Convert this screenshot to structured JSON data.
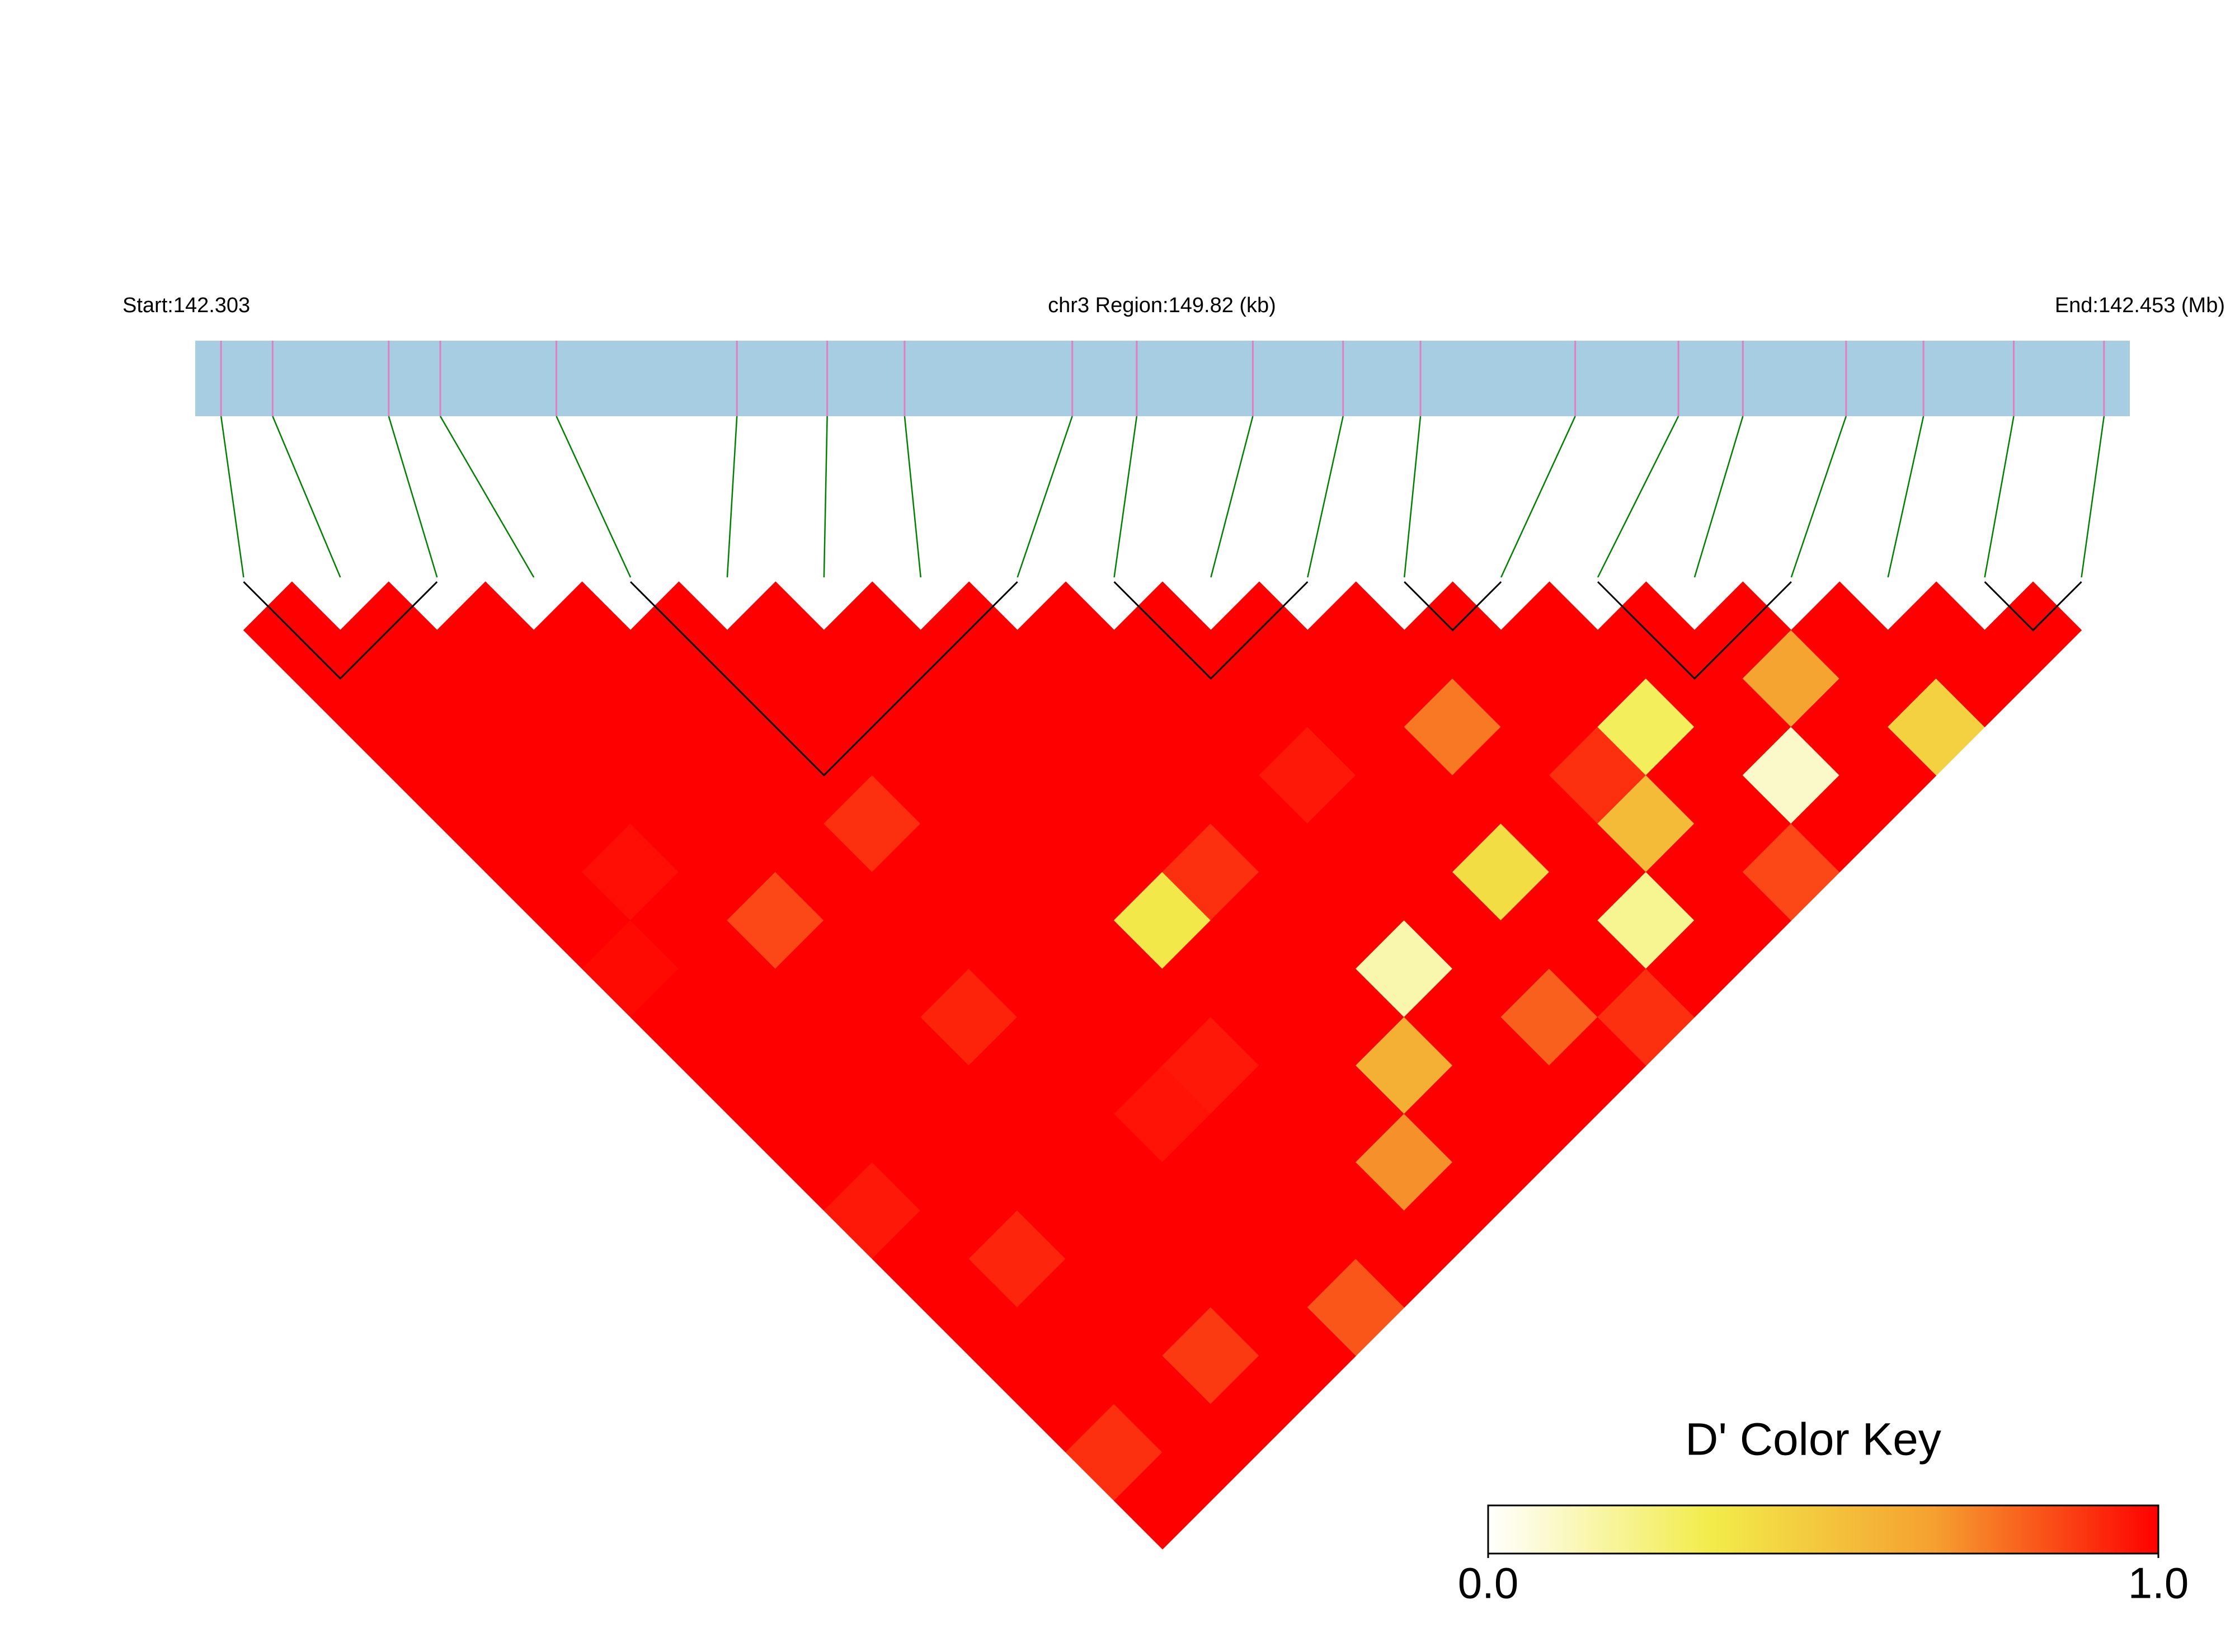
{
  "chart_data": {
    "type": "ld-heatmap",
    "start_label": "Start:142.303",
    "region_label": "chr3 Region:149.82 (kb)",
    "end_label": "End:142.453 (Mb)",
    "xlim": [
      142.303,
      142.453
    ],
    "snp_positions": [
      142.305,
      142.309,
      142.318,
      142.322,
      142.331,
      142.345,
      142.352,
      142.358,
      142.371,
      142.376,
      142.385,
      142.392,
      142.398,
      142.41,
      142.418,
      142.423,
      142.431,
      142.437,
      142.444,
      142.451
    ],
    "band_color": "#a6cde1",
    "tick_color": "#e07fc4",
    "connector_color": "#008000",
    "ld": [
      [
        1,
        1,
        1,
        1,
        1,
        1,
        1,
        0.98,
        1,
        1,
        1,
        1,
        0.95,
        1,
        1,
        1,
        1,
        0.9,
        1
      ],
      [
        1,
        1,
        1,
        1,
        1,
        0.97,
        1,
        1,
        1,
        1,
        1,
        1,
        1,
        0.92,
        1,
        1,
        1,
        1
      ],
      [
        1,
        1,
        1,
        1,
        1,
        1,
        0.85,
        1,
        1,
        1,
        1,
        1,
        1,
        1,
        1,
        0.88,
        1
      ],
      [
        1,
        1,
        1,
        1,
        1,
        1,
        1,
        1,
        0.93,
        1,
        1,
        1,
        1,
        1,
        1,
        1
      ],
      [
        1,
        1,
        1,
        1,
        0.9,
        1,
        1,
        1,
        1,
        1,
        0.96,
        1,
        1,
        1,
        0.82
      ],
      [
        1,
        1,
        1,
        1,
        1,
        1,
        1,
        1,
        1,
        0.95,
        1,
        1,
        1,
        1
      ],
      [
        1,
        1,
        1,
        1,
        1,
        1,
        0.35,
        1,
        1,
        1,
        1,
        0.7,
        1
      ],
      [
        1,
        1,
        1,
        1,
        1,
        0.9,
        1,
        1,
        1,
        0.6,
        1,
        1
      ],
      [
        1,
        1,
        1,
        1,
        1,
        1,
        1,
        0.15,
        1,
        1,
        1
      ],
      [
        1,
        1,
        1,
        0.95,
        1,
        1,
        1,
        1,
        0.8,
        1
      ],
      [
        1,
        1,
        1,
        1,
        1,
        0.4,
        1,
        1,
        0.9
      ],
      [
        1,
        1,
        0.75,
        1,
        1,
        1,
        0.2,
        1
      ],
      [
        1,
        1,
        1,
        0.9,
        0.55,
        1,
        1
      ],
      [
        1,
        1,
        0.3,
        1,
        1,
        0.85
      ],
      [
        1,
        1,
        1,
        0.1,
        1
      ],
      [
        1,
        0.65,
        1,
        1
      ],
      [
        1,
        1,
        0.45
      ],
      [
        1,
        1
      ],
      [
        1
      ]
    ],
    "blocks": [
      [
        0,
        2
      ],
      [
        4,
        8
      ],
      [
        9,
        11
      ],
      [
        12,
        13
      ],
      [
        14,
        16
      ],
      [
        18,
        19
      ]
    ],
    "colormap": [
      "#ffffff",
      "#f2ec4a",
      "#f5a030",
      "#ff0000"
    ],
    "key_title": "D' Color Key",
    "key_lim": [
      0,
      1
    ],
    "key_ticks": [
      {
        "value": 0,
        "label": "0.0"
      },
      {
        "value": 1,
        "label": "1.0"
      }
    ]
  }
}
